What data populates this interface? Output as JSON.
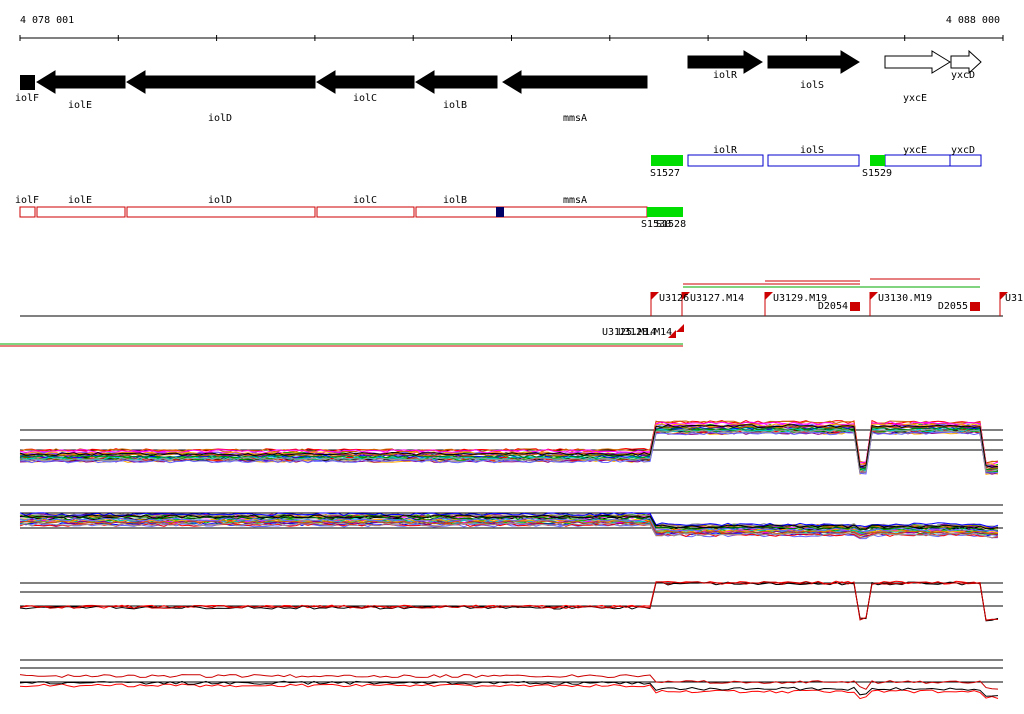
{
  "ruler": {
    "start": "4 078 001",
    "end": "4 088 000"
  },
  "genes": [
    "iolF",
    "iolE",
    "iolD",
    "iolC",
    "iolB",
    "mmsA",
    "iolR",
    "iolS",
    "yxcE",
    "yxcD"
  ],
  "features": [
    "S1527",
    "iolR",
    "iolS",
    "S1529",
    "yxcE",
    "yxcD"
  ],
  "transcripts": [
    "iolF",
    "iolE",
    "iolD",
    "iolC",
    "iolB",
    "mmsA",
    "S1530",
    "S1528"
  ],
  "promoters": [
    "U3126",
    "U3127.M14",
    "U3129.M19",
    "D2054",
    "U3130.M19",
    "D2055",
    "U31",
    "U3125.M14",
    "U3128.M14"
  ]
}
